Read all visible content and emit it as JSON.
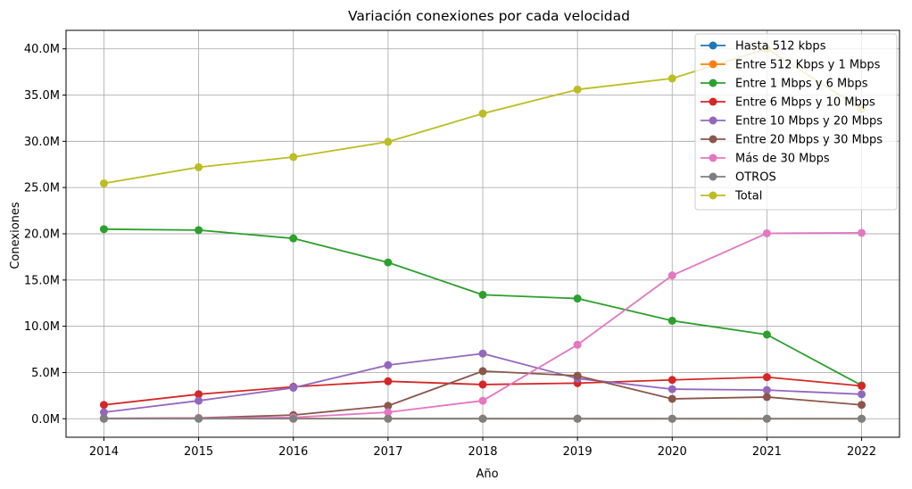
{
  "chart_data": {
    "type": "line",
    "title": "Variación conexiones por cada velocidad",
    "xlabel": "Año",
    "ylabel": "Conexiones",
    "x": [
      2014,
      2015,
      2016,
      2017,
      2018,
      2019,
      2020,
      2021,
      2022
    ],
    "x_tick_labels": [
      "2014",
      "2015",
      "2016",
      "2017",
      "2018",
      "2019",
      "2020",
      "2021",
      "2022"
    ],
    "ylim": [
      -2000000,
      42000000
    ],
    "y_ticks": [
      0,
      5000000,
      10000000,
      15000000,
      20000000,
      25000000,
      30000000,
      35000000,
      40000000
    ],
    "y_tick_labels": [
      "0.0M",
      "5.0M",
      "10.0M",
      "15.0M",
      "20.0M",
      "25.0M",
      "30.0M",
      "35.0M",
      "40.0M"
    ],
    "grid": true,
    "legend_position": "top-right",
    "series": [
      {
        "name": "Hasta 512 kbps",
        "color": "#1f77b4",
        "values": [
          20000,
          15000,
          12000,
          10000,
          8000,
          7000,
          6000,
          5000,
          4000
        ]
      },
      {
        "name": "Entre 512 Kbps y 1 Mbps",
        "color": "#ff7f0e",
        "values": [
          30000,
          25000,
          20000,
          15000,
          12000,
          10000,
          8000,
          7000,
          6000
        ]
      },
      {
        "name": "Entre 1 Mbps y 6 Mbps",
        "color": "#2ca02c",
        "values": [
          20500000,
          20400000,
          19500000,
          16900000,
          13400000,
          13000000,
          10600000,
          9100000,
          3600000
        ]
      },
      {
        "name": "Entre 6 Mbps y 10 Mbps",
        "color": "#d62728",
        "values": [
          1500000,
          2650000,
          3450000,
          4050000,
          3700000,
          3850000,
          4200000,
          4500000,
          3550000
        ]
      },
      {
        "name": "Entre 10 Mbps y 20 Mbps",
        "color": "#9467bd",
        "values": [
          700000,
          1950000,
          3350000,
          5800000,
          7050000,
          4350000,
          3200000,
          3100000,
          2650000
        ]
      },
      {
        "name": "Entre 20 Mbps y 30 Mbps",
        "color": "#8c564b",
        "values": [
          50000,
          80000,
          400000,
          1400000,
          5150000,
          4650000,
          2150000,
          2350000,
          1500000
        ]
      },
      {
        "name": "Más de 30 Mbps",
        "color": "#e377c2",
        "values": [
          20000,
          40000,
          150000,
          700000,
          1950000,
          8000000,
          15500000,
          20050000,
          20100000
        ]
      },
      {
        "name": "OTROS",
        "color": "#7f7f7f",
        "values": [
          0,
          0,
          0,
          0,
          0,
          0,
          0,
          0,
          0
        ]
      },
      {
        "name": "Total",
        "color": "#bcbd22",
        "values": [
          25450000,
          27200000,
          28300000,
          29950000,
          33000000,
          35600000,
          36800000,
          40000000,
          33500000
        ]
      }
    ]
  }
}
